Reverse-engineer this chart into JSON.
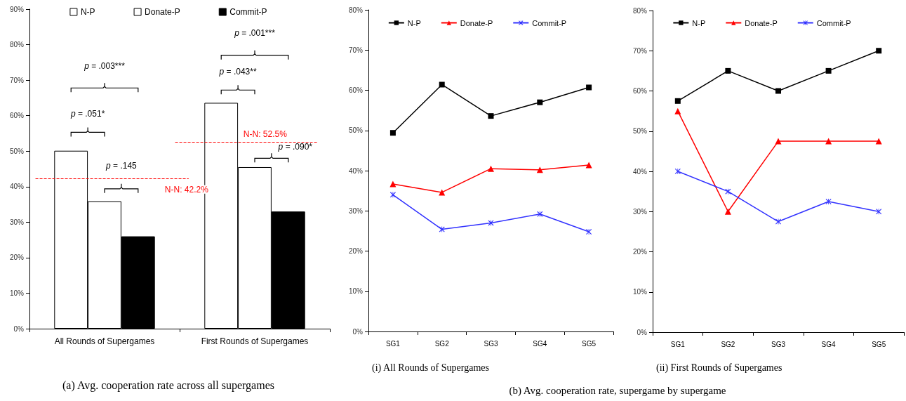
{
  "chart_data": [
    {
      "type": "bar",
      "title": "(a) Avg. cooperation rate across all supergames",
      "categories": [
        "All Rounds of Supergames",
        "First Rounds of Supergames"
      ],
      "series": [
        {
          "name": "N-P",
          "color": "#ffffff",
          "values": [
            50.1,
            63.6
          ]
        },
        {
          "name": "Donate-P",
          "color": "#ffffff",
          "values": [
            35.9,
            45.5
          ]
        },
        {
          "name": "Commit-P",
          "color": "#000000",
          "values": [
            26.0,
            33.0
          ]
        }
      ],
      "ylim": [
        0,
        90
      ],
      "yticks": [
        {
          "value": 0,
          "label": "0%"
        },
        {
          "value": 10,
          "label": "10%"
        },
        {
          "value": 20,
          "label": "20%"
        },
        {
          "value": 30,
          "label": "30%"
        },
        {
          "value": 40,
          "label": "40%"
        },
        {
          "value": 50,
          "label": "50%"
        },
        {
          "value": 60,
          "label": "60%"
        },
        {
          "value": 70,
          "label": "70%"
        },
        {
          "value": 80,
          "label": "80%"
        },
        {
          "value": 90,
          "label": "90%"
        }
      ],
      "ref_lines": [
        {
          "axis": "y",
          "value": 42.2,
          "label": "N-N: 42.2%",
          "color": "#ff0000",
          "line_style": "dashed"
        },
        {
          "axis": "y",
          "value": 52.5,
          "label": "N-N: 52.5%",
          "color": "#ff0000",
          "line_style": "dashed"
        }
      ],
      "annotations": [
        "p = .051*",
        "p = .003***",
        "p = .145",
        "p = .043**",
        "p = .001***",
        "p = .090*"
      ],
      "legend": "top",
      "grid": false
    },
    {
      "type": "line",
      "title": "(i) All Rounds of Supergames",
      "categories": [
        "SG1",
        "SG2",
        "SG3",
        "SG4",
        "SG5"
      ],
      "series": [
        {
          "name": "N-P",
          "color": "#000000",
          "marker": "square",
          "values": [
            49.4,
            61.4,
            53.6,
            57.0,
            60.7
          ]
        },
        {
          "name": "Donate-P",
          "color": "#ff0000",
          "marker": "triangle",
          "values": [
            36.7,
            34.6,
            40.5,
            40.2,
            41.4
          ]
        },
        {
          "name": "Commit-P",
          "color": "#3333ff",
          "marker": "cross",
          "values": [
            34.0,
            25.4,
            27.0,
            29.2,
            24.8
          ]
        }
      ],
      "ylim": [
        0,
        80
      ],
      "yticks": [
        {
          "value": 0,
          "label": "0%"
        },
        {
          "value": 10,
          "label": "10%"
        },
        {
          "value": 20,
          "label": "20%"
        },
        {
          "value": 30,
          "label": "30%"
        },
        {
          "value": 40,
          "label": "40%"
        },
        {
          "value": 50,
          "label": "50%"
        },
        {
          "value": 60,
          "label": "60%"
        },
        {
          "value": 70,
          "label": "70%"
        },
        {
          "value": 80,
          "label": "80%"
        }
      ],
      "annotations": [
        "(b) Avg. cooperation rate, supergame by supergame"
      ],
      "legend": "top",
      "grid": false
    },
    {
      "type": "line",
      "title": "(ii) First Rounds of Supergames",
      "categories": [
        "SG1",
        "SG2",
        "SG3",
        "SG4",
        "SG5"
      ],
      "series": [
        {
          "name": "N-P",
          "color": "#000000",
          "marker": "square",
          "values": [
            57.5,
            65.0,
            60.0,
            65.0,
            70.0
          ]
        },
        {
          "name": "Donate-P",
          "color": "#ff0000",
          "marker": "triangle",
          "values": [
            55.0,
            30.0,
            47.5,
            47.5,
            47.5
          ]
        },
        {
          "name": "Commit-P",
          "color": "#3333ff",
          "marker": "cross",
          "values": [
            40.0,
            35.0,
            27.5,
            32.5,
            30.0
          ]
        }
      ],
      "ylim": [
        0,
        80
      ],
      "yticks": [
        {
          "value": 0,
          "label": "0%"
        },
        {
          "value": 10,
          "label": "10%"
        },
        {
          "value": 20,
          "label": "20%"
        },
        {
          "value": 30,
          "label": "30%"
        },
        {
          "value": 40,
          "label": "40%"
        },
        {
          "value": 50,
          "label": "50%"
        },
        {
          "value": 60,
          "label": "60%"
        },
        {
          "value": 70,
          "label": "70%"
        },
        {
          "value": 80,
          "label": "80%"
        }
      ],
      "legend": "top",
      "grid": false
    }
  ]
}
